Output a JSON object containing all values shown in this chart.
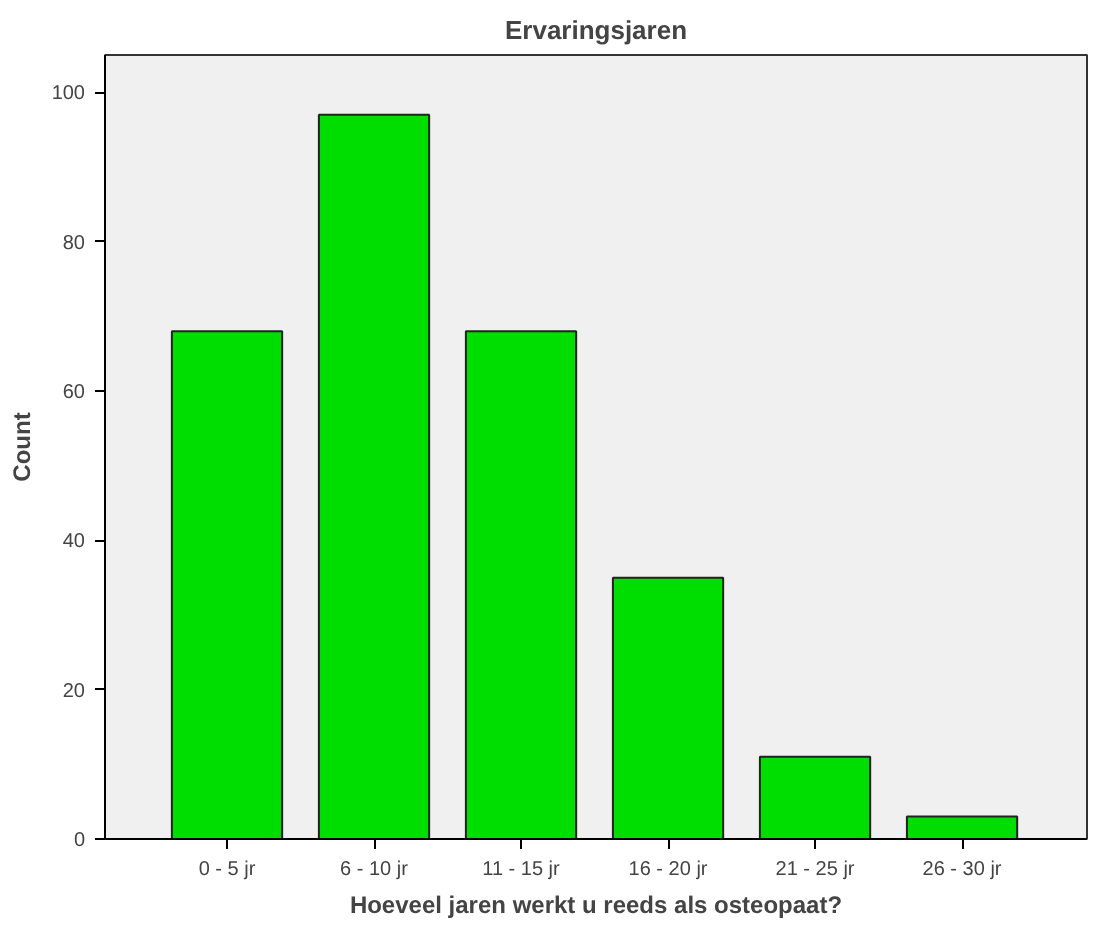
{
  "chart_data": {
    "type": "bar",
    "title": "Ervaringsjaren",
    "xlabel": "Hoeveel jaren werkt u reeds als osteopaat?",
    "ylabel": "Count",
    "categories": [
      "0 - 5 jr",
      "6 - 10 jr",
      "11 - 15 jr",
      "16 - 20 jr",
      "21 - 25 jr",
      "26 - 30 jr"
    ],
    "values": [
      68,
      97,
      68,
      35,
      11,
      3
    ],
    "color": "#00dd00",
    "ylim": [
      0,
      105
    ],
    "yticks": [
      0,
      20,
      40,
      60,
      80,
      100
    ],
    "grid": false
  }
}
